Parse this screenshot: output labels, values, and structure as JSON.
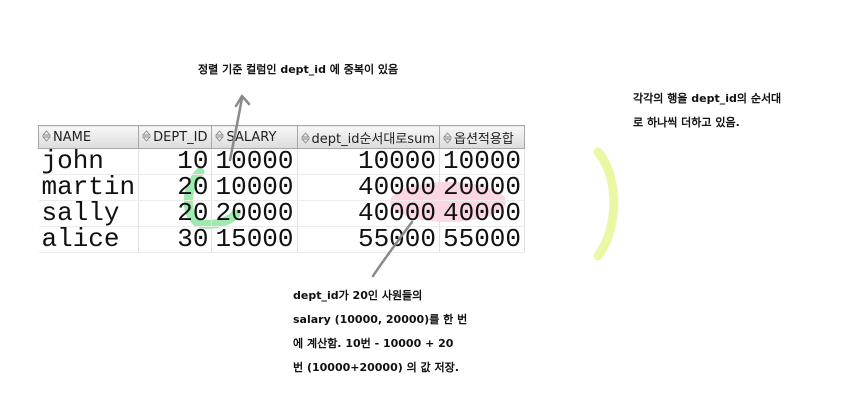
{
  "annotations": {
    "top": "정렬 기준 컬럼인 dept_id 에 중복이 있음",
    "right": [
      "각각의 행을 dept_id의 순서대",
      "로 하나씩 더하고 있음."
    ],
    "bottom": [
      "dept_id가 20인 사원들의",
      "salary (10000, 20000)를 한 번",
      "에 계산함. 10번 - 10000 + 20",
      "번 (10000+20000) 의 값 저장."
    ]
  },
  "grid": {
    "columns": [
      "NAME",
      "DEPT_ID",
      "SALARY",
      "dept_id순서대로sum",
      "옵션적용합"
    ],
    "rows": [
      [
        "john",
        "10",
        "10000",
        "10000",
        "10000"
      ],
      [
        "martin",
        "20",
        "10000",
        "40000",
        "20000"
      ],
      [
        "sally",
        "20",
        "20000",
        "40000",
        "40000"
      ],
      [
        "alice",
        "30",
        "15000",
        "55000",
        "55000"
      ]
    ]
  },
  "colors": {
    "green_marker": "#8ee6a0",
    "pink_marker": "#f9c9d9",
    "yellow_marker": "#ecf7a6",
    "arrow": "#8a8a8a"
  }
}
